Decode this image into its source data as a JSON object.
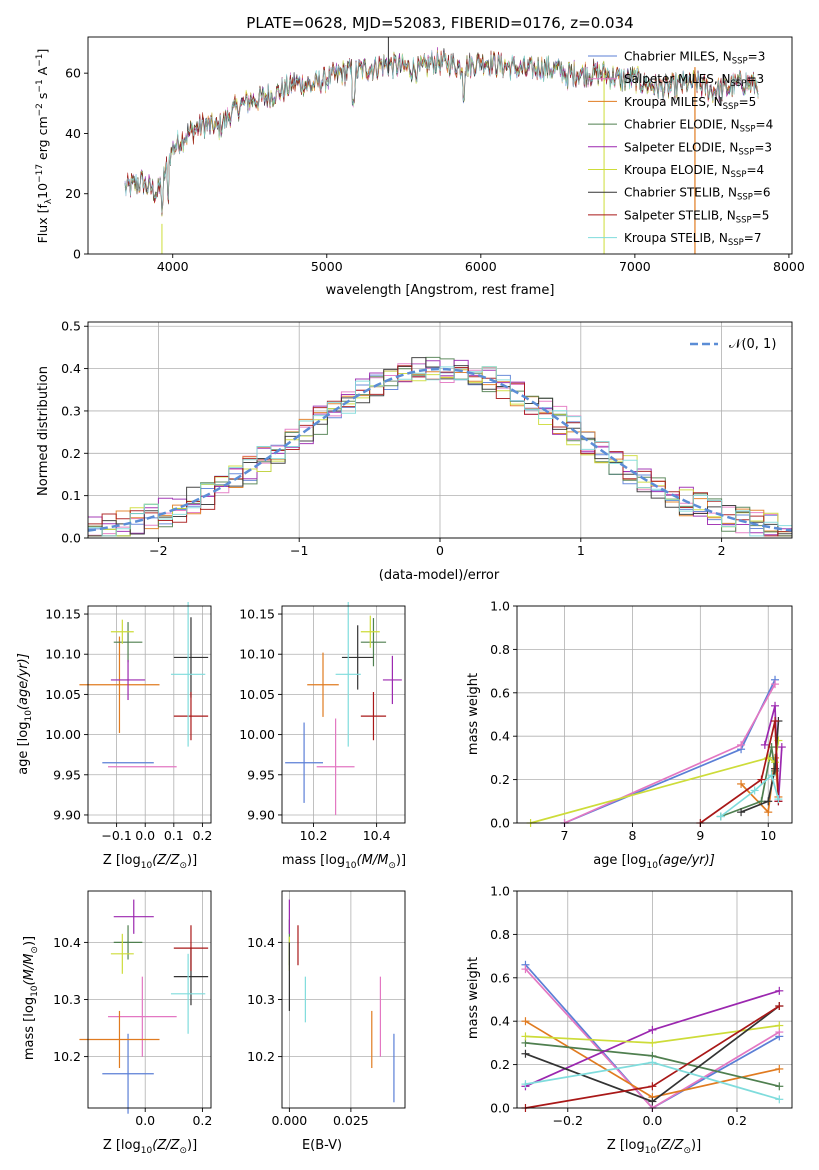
{
  "colors": [
    "#5b7fd6",
    "#e377c2",
    "#e07b20",
    "#4f7f4f",
    "#9b27af",
    "#cddc39",
    "#333333",
    "#a91818",
    "#7fdcdc"
  ],
  "spectrum": {
    "title": "PLATE=0628, MJD=52083, FIBERID=0176, z=0.034",
    "xlabel": "wavelength [Angstrom, rest frame]",
    "ylabel_main": "Flux [f",
    "ylabel_unit": "10",
    "ylabel_tail": " erg cm",
    "ylabel_tail2": " s",
    "ylabel_tail3": " A",
    "ylabel_close": "]",
    "xticks": [
      "4000",
      "5000",
      "6000",
      "7000",
      "8000"
    ],
    "yticks": [
      "0",
      "20",
      "40",
      "60"
    ],
    "legend": [
      {
        "name": "Chabrier MILES",
        "nssp": "3"
      },
      {
        "name": "Salpeter MILES",
        "nssp": "3"
      },
      {
        "name": "Kroupa MILES",
        "nssp": "5"
      },
      {
        "name": "Chabrier ELODIE",
        "nssp": "4"
      },
      {
        "name": "Salpeter ELODIE",
        "nssp": "3"
      },
      {
        "name": "Kroupa ELODIE",
        "nssp": "4"
      },
      {
        "name": "Chabrier STELIB",
        "nssp": "6"
      },
      {
        "name": "Salpeter STELIB",
        "nssp": "5"
      },
      {
        "name": "Kroupa STELIB",
        "nssp": "7"
      }
    ],
    "nssp_prefix": "N",
    "nssp_sub": "SSP"
  },
  "histogram": {
    "xlabel": "(data-model)/error",
    "ylabel": "Normed distribution",
    "xticks": [
      "−2",
      "−1",
      "0",
      "1",
      "2"
    ],
    "yticks": [
      "0.0",
      "0.1",
      "0.2",
      "0.3",
      "0.4",
      "0.5"
    ],
    "legend": "𝒩(0, 1)"
  },
  "panels": {
    "age_label": "age  [log",
    "age_label2": "(age/yr)]",
    "z_label": "Z [log",
    "z_label2": "(Z/Z",
    "z_label3": ")]",
    "mass_label": "mass [log",
    "mass_label2": "(M/M",
    "mass_label3": ")]",
    "ebv_label": "E(B-V)",
    "mw_label": "mass weight",
    "p1_xticks": [
      "−0.1",
      "0.0",
      "0.1",
      "0.2"
    ],
    "p1_yticks": [
      "9.90",
      "9.95",
      "10.00",
      "10.05",
      "10.10",
      "10.15"
    ],
    "p2_xticks": [
      "10.2",
      "10.4"
    ],
    "p3_xticks": [
      "7",
      "8",
      "9",
      "10"
    ],
    "p3_yticks": [
      "0.0",
      "0.2",
      "0.4",
      "0.6",
      "0.8",
      "1.0"
    ],
    "p4_yticks": [
      "10.2",
      "10.3",
      "10.4"
    ],
    "p5_xticks": [
      "0.000",
      "0.025"
    ],
    "p6_xticks": [
      "−0.2",
      "0.0",
      "0.2"
    ]
  },
  "chart_data": [
    {
      "type": "line",
      "title": "PLATE=0628, MJD=52083, FIBERID=0176, z=0.034",
      "xlabel": "wavelength [Angstrom, rest frame]",
      "ylabel": "Flux [f_lambda 10^-17 erg cm^-2 s^-1 A^-1]",
      "xlim": [
        3450,
        8020
      ],
      "ylim": [
        0,
        72
      ],
      "continuum": {
        "x": [
          3700,
          3800,
          3900,
          3950,
          4000,
          4100,
          4200,
          4300,
          4400,
          4500,
          4600,
          4700,
          4800,
          4900,
          5000,
          5100,
          5200,
          5300,
          5400,
          5500,
          5600,
          5700,
          5800,
          5900,
          6000,
          6100,
          6200,
          6300,
          6400,
          6500,
          6600,
          6700,
          6800,
          6900,
          7000,
          7100,
          7200,
          7300,
          7400,
          7500,
          7600,
          7700,
          7800
        ],
        "y": [
          22,
          24,
          20,
          27,
          35,
          40,
          43,
          42,
          48,
          51,
          52,
          54,
          57,
          56,
          58,
          60,
          61,
          62,
          63,
          62,
          61,
          64,
          63,
          62,
          64,
          63,
          62,
          61,
          62,
          61,
          60,
          60,
          60,
          58,
          58,
          56,
          55,
          56,
          57,
          54,
          55,
          57,
          56
        ]
      },
      "series": [
        "Chabrier MILES N_SSP=3",
        "Salpeter MILES N_SSP=3",
        "Kroupa MILES N_SSP=5",
        "Chabrier ELODIE N_SSP=4",
        "Salpeter ELODIE N_SSP=3",
        "Kroupa ELODIE N_SSP=4",
        "Chabrier STELIB N_SSP=6",
        "Salpeter STELIB N_SSP=5",
        "Kroupa STELIB N_SSP=7"
      ]
    },
    {
      "type": "bar",
      "xlabel": "(data-model)/error",
      "ylabel": "Normed distribution",
      "xlim": [
        -2.5,
        2.5
      ],
      "ylim": [
        0,
        0.51
      ],
      "bin_width": 0.1,
      "reference": "N(0,1)"
    },
    {
      "type": "scatter",
      "xlabel": "Z [log10(Z/Zsun)]",
      "ylabel": "age [log10(age/yr)]",
      "xlim": [
        -0.2,
        0.23
      ],
      "ylim": [
        9.89,
        10.16
      ],
      "points": [
        {
          "x": -0.06,
          "y": 9.965,
          "xerr": 0.09,
          "yerr": 0
        },
        {
          "x": -0.01,
          "y": 9.96,
          "xerr": 0.12,
          "yerr": 0
        },
        {
          "x": -0.09,
          "y": 10.062,
          "xerr": 0.14,
          "yerr": 0.06
        },
        {
          "x": -0.06,
          "y": 10.115,
          "xerr": 0.05,
          "yerr": 0.025
        },
        {
          "x": -0.06,
          "y": 10.068,
          "xerr": 0.06,
          "yerr": 0.025
        },
        {
          "x": -0.08,
          "y": 10.128,
          "xerr": 0.04,
          "yerr": 0.015
        },
        {
          "x": 0.16,
          "y": 10.096,
          "xerr": 0.06,
          "yerr": 0.05
        },
        {
          "x": 0.16,
          "y": 10.023,
          "xerr": 0.06,
          "yerr": 0.03
        },
        {
          "x": 0.15,
          "y": 10.075,
          "xerr": 0.06,
          "yerr": 0.09
        }
      ]
    },
    {
      "type": "scatter",
      "xlabel": "mass [log10(M/Msun)]",
      "ylabel": "age [log10(age/yr)]",
      "xlim": [
        10.1,
        10.49
      ],
      "ylim": [
        9.89,
        10.16
      ],
      "points": [
        {
          "x": 10.17,
          "y": 9.965,
          "xerr": 0.06,
          "yerr": 0.05
        },
        {
          "x": 10.27,
          "y": 9.96,
          "xerr": 0.06,
          "yerr": 0.06
        },
        {
          "x": 10.23,
          "y": 10.062,
          "xerr": 0.05,
          "yerr": 0.04
        },
        {
          "x": 10.39,
          "y": 10.115,
          "xerr": 0.04,
          "yerr": 0.03
        },
        {
          "x": 10.45,
          "y": 10.068,
          "xerr": 0.03,
          "yerr": 0.03
        },
        {
          "x": 10.38,
          "y": 10.128,
          "xerr": 0.03,
          "yerr": 0.02
        },
        {
          "x": 10.34,
          "y": 10.096,
          "xerr": 0.05,
          "yerr": 0.04
        },
        {
          "x": 10.39,
          "y": 10.023,
          "xerr": 0.04,
          "yerr": 0.03
        },
        {
          "x": 10.31,
          "y": 10.075,
          "xerr": 0.04,
          "yerr": 0.09
        }
      ]
    },
    {
      "type": "line",
      "xlabel": "age [log10(age/yr)]",
      "ylabel": "mass weight",
      "xlim": [
        6.3,
        10.35
      ],
      "ylim": [
        0,
        1.0
      ],
      "series": [
        {
          "x": [
            7.0,
            9.6,
            10.1
          ],
          "y": [
            0.0,
            0.34,
            0.66
          ]
        },
        {
          "x": [
            7.0,
            9.6,
            10.1
          ],
          "y": [
            0.0,
            0.36,
            0.64
          ]
        },
        {
          "x": [
            9.6,
            10.0,
            10.1,
            10.15
          ],
          "y": [
            0.18,
            0.05,
            0.3,
            0.12
          ]
        },
        {
          "x": [
            9.3,
            9.9,
            10.05,
            10.1
          ],
          "y": [
            0.03,
            0.1,
            0.35,
            0.24
          ]
        },
        {
          "x": [
            9.95,
            10.1,
            10.15,
            10.2
          ],
          "y": [
            0.36,
            0.54,
            0.1,
            0.35
          ]
        },
        {
          "x": [
            6.5,
            10.0,
            10.1,
            10.15
          ],
          "y": [
            0.0,
            0.3,
            0.28,
            0.38
          ]
        },
        {
          "x": [
            9.6,
            10.0,
            10.1,
            10.15
          ],
          "y": [
            0.05,
            0.1,
            0.25,
            0.47
          ]
        },
        {
          "x": [
            9.0,
            9.9,
            10.1,
            10.15
          ],
          "y": [
            0.0,
            0.2,
            0.47,
            0.1
          ]
        },
        {
          "x": [
            9.3,
            9.8,
            10.05,
            10.15
          ],
          "y": [
            0.03,
            0.15,
            0.22,
            0.11
          ]
        }
      ]
    },
    {
      "type": "scatter",
      "xlabel": "Z [log10(Z/Zsun)]",
      "ylabel": "mass [log10(M/Msun)]",
      "xlim": [
        -0.2,
        0.23
      ],
      "ylim": [
        10.11,
        10.49
      ],
      "points": [
        {
          "x": -0.06,
          "y": 10.17,
          "xerr": 0.09,
          "yerr": 0.07
        },
        {
          "x": -0.01,
          "y": 10.27,
          "xerr": 0.12,
          "yerr": 0.07
        },
        {
          "x": -0.09,
          "y": 10.23,
          "xerr": 0.14,
          "yerr": 0.05
        },
        {
          "x": -0.06,
          "y": 10.4,
          "xerr": 0.05,
          "yerr": 0.03
        },
        {
          "x": -0.04,
          "y": 10.445,
          "xerr": 0.07,
          "yerr": 0.03
        },
        {
          "x": -0.08,
          "y": 10.38,
          "xerr": 0.04,
          "yerr": 0.035
        },
        {
          "x": 0.16,
          "y": 10.34,
          "xerr": 0.06,
          "yerr": 0.05
        },
        {
          "x": 0.16,
          "y": 10.39,
          "xerr": 0.06,
          "yerr": 0.04
        },
        {
          "x": 0.15,
          "y": 10.31,
          "xerr": 0.06,
          "yerr": 0.07
        }
      ]
    },
    {
      "type": "scatter",
      "xlabel": "E(B-V)",
      "ylabel": "mass [log10(M/Msun)]",
      "xlim": [
        -0.003,
        0.047
      ],
      "ylim": [
        10.11,
        10.49
      ],
      "points": [
        {
          "x": 0.0425,
          "y": 10.18,
          "xerr": 0,
          "yerr": 0.06
        },
        {
          "x": 0.037,
          "y": 10.27,
          "xerr": 0,
          "yerr": 0.07
        },
        {
          "x": 0.0335,
          "y": 10.23,
          "xerr": 0,
          "yerr": 0.05
        },
        {
          "x": 0.0,
          "y": 10.4,
          "xerr": 0,
          "yerr": 0.04
        },
        {
          "x": 0.0,
          "y": 10.445,
          "xerr": 0,
          "yerr": 0.03
        },
        {
          "x": 0.0,
          "y": 10.38,
          "xerr": 0,
          "yerr": 0.03
        },
        {
          "x": 0.0,
          "y": 10.34,
          "xerr": 0,
          "yerr": 0.06
        },
        {
          "x": 0.0035,
          "y": 10.395,
          "xerr": 0,
          "yerr": 0.035
        },
        {
          "x": 0.0065,
          "y": 10.3,
          "xerr": 0,
          "yerr": 0.04
        }
      ]
    },
    {
      "type": "line",
      "xlabel": "Z [log10(Z/Zsun)]",
      "ylabel": "mass weight",
      "xlim": [
        -0.32,
        0.33
      ],
      "ylim": [
        0,
        1.0
      ],
      "series": [
        {
          "x": [
            -0.3,
            0.0,
            0.3
          ],
          "y": [
            0.66,
            0.0,
            0.33
          ]
        },
        {
          "x": [
            -0.3,
            0.0,
            0.3
          ],
          "y": [
            0.64,
            0.0,
            0.35
          ]
        },
        {
          "x": [
            -0.3,
            0.0,
            0.3
          ],
          "y": [
            0.4,
            0.05,
            0.18
          ]
        },
        {
          "x": [
            -0.3,
            0.0,
            0.3
          ],
          "y": [
            0.3,
            0.24,
            0.1
          ]
        },
        {
          "x": [
            -0.3,
            0.0,
            0.3
          ],
          "y": [
            0.1,
            0.36,
            0.54
          ]
        },
        {
          "x": [
            -0.3,
            0.0,
            0.3
          ],
          "y": [
            0.33,
            0.3,
            0.38
          ]
        },
        {
          "x": [
            -0.3,
            0.0,
            0.3
          ],
          "y": [
            0.25,
            0.03,
            0.47
          ]
        },
        {
          "x": [
            -0.3,
            0.0,
            0.3
          ],
          "y": [
            0.0,
            0.1,
            0.47
          ]
        },
        {
          "x": [
            -0.3,
            0.0,
            0.3
          ],
          "y": [
            0.11,
            0.21,
            0.04
          ]
        }
      ]
    }
  ]
}
